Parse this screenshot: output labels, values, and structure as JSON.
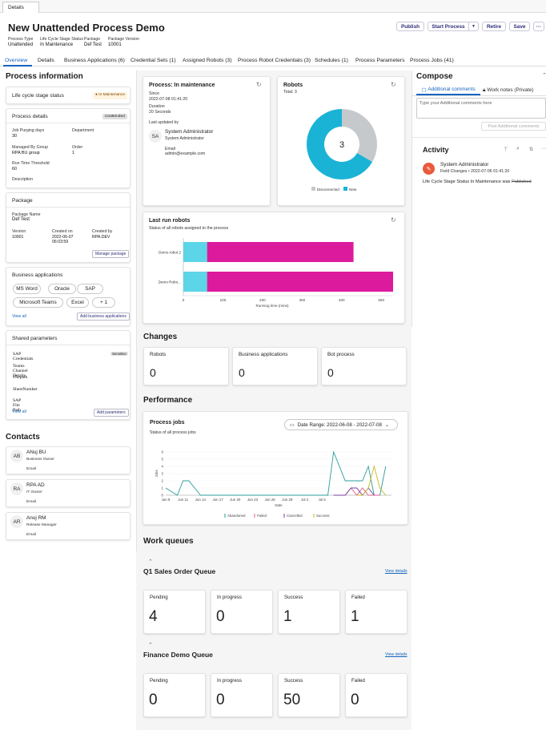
{
  "top_tab": "Details",
  "title": "New Unattended Process Demo",
  "meta": {
    "process_type_label": "Process Type",
    "process_type": "Unattended",
    "lifecycle_label": "Life Cycle Stage Status",
    "lifecycle": "In Maintenance",
    "package_label": "Package",
    "package": "Def Test",
    "version_label": "Package Version",
    "version": "10001"
  },
  "actions": {
    "publish": "Publish",
    "start_process": "Start Process",
    "retire": "Retire",
    "save": "Save",
    "more": "···"
  },
  "tabs": [
    "Overview",
    "Details",
    "Business Applications (6)",
    "Credential Sets (1)",
    "Assigned Robots (3)",
    "Process Robot Credentials (3)",
    "Schedules (1)",
    "Process Parameters",
    "Process Jobs (41)"
  ],
  "left": {
    "heading": "Process information",
    "lifecycle_card": {
      "title": "Life cycle stage status",
      "badge": "In Maintenance"
    },
    "details_card": {
      "title": "Process details",
      "badge": "Unattended",
      "job_purging_label": "Job Purging days",
      "job_purging": "30",
      "department_label": "Department",
      "managed_label": "Managed By Group",
      "managed": "RPA BU group",
      "order_label": "Order",
      "order": "1",
      "runtime_label": "Run Time Threshold",
      "runtime": "60",
      "description_label": "Description"
    },
    "package_card": {
      "title": "Package",
      "name_label": "Package Name",
      "name": "Def Test",
      "version_label": "Version",
      "version": "10001",
      "created_on_label": "Created on",
      "created_on": "2022-06-07 06:03:59",
      "created_by_label": "Created by",
      "created_by": "RPA.DEV",
      "manage_btn": "Manage package"
    },
    "apps_card": {
      "title": "Business applications",
      "apps": [
        "MS Word",
        "Oracle",
        "SAP",
        "Microsoft Teams",
        "Excel",
        "+ 1"
      ],
      "view_all": "View all",
      "add_btn": "Add business applications"
    },
    "params_card": {
      "title": "Shared parameters",
      "params": [
        "SAP Credentials",
        "Teams Channel Details",
        "Filepath",
        "SheetNumber",
        "SAP File Path"
      ],
      "sensitive": "Sensitive",
      "view_all": "View all",
      "add_btn": "Add parameters"
    },
    "contacts_heading": "Contacts",
    "contacts": [
      {
        "initials": "AB",
        "name": "ANuj BU",
        "role": "Business Owner",
        "email": "Email"
      },
      {
        "initials": "RA",
        "name": "RPA AD",
        "role": "IT Owner",
        "email": "Email"
      },
      {
        "initials": "AR",
        "name": "Anuj RM",
        "role": "Release Manager",
        "email": "Email"
      }
    ]
  },
  "process_card": {
    "title": "Process: In maintenance",
    "since_label": "Since",
    "since": "2022-07-08 01:41:20",
    "duration_label": "Duration",
    "duration": "20 Seconds",
    "updated_label": "Last updated by",
    "avatar": "SA",
    "user": "System Administrator",
    "user_role": "System Administrator",
    "email_label": "Email",
    "email": "admin@example.com"
  },
  "robots_card": {
    "title": "Robots",
    "total": "Total: 3",
    "center": "3",
    "legend": [
      "Disconnected",
      "New"
    ]
  },
  "lastrun": {
    "title": "Last run robots",
    "subtitle": "Status of all robots assigned to the process",
    "xlabel": "Running time (mins)"
  },
  "colors": {
    "cyan": "#1ab3d6",
    "gray": "#c6c9cc",
    "magenta": "#dc1a9e",
    "lightcyan": "#5dd5e8",
    "accent": "#1565c0"
  },
  "chart_data": [
    {
      "type": "pie",
      "title": "Robots",
      "categories": [
        "Disconnected",
        "New"
      ],
      "values": [
        1,
        2
      ]
    },
    {
      "type": "bar",
      "title": "Last run robots",
      "xlabel": "Running time (mins)",
      "categories": [
        "Demo robot 2",
        "Demo Robo..."
      ],
      "series": [
        {
          "values": [
            60,
            60
          ]
        },
        {
          "values": [
            370,
            470
          ]
        }
      ],
      "xticks": [
        "0",
        "100",
        "200",
        "300",
        "400",
        "500"
      ],
      "xlim": [
        0,
        530
      ]
    },
    {
      "type": "line",
      "title": "Process jobs",
      "ylabel": "Jobs",
      "xlabel": "Date",
      "x_ticks": [
        "Jun 8",
        "Jun 11",
        "Jun 14",
        "Jun 17",
        "Jun 20",
        "Jun 23",
        "Jun 26",
        "Jun 29",
        "Jul 2",
        "Jul 5"
      ],
      "y_ticks": [
        "0",
        "1",
        "2",
        "3",
        "4",
        "5",
        "6"
      ],
      "ylim": [
        0,
        6
      ],
      "series": [
        {
          "name": "Abandoned",
          "color": "#2a9c9c",
          "points": [
            [
              0,
              1
            ],
            [
              2,
              0
            ],
            [
              3,
              2
            ],
            [
              4,
              2
            ],
            [
              5,
              1
            ],
            [
              6,
              0
            ],
            [
              28,
              0
            ],
            [
              29,
              6
            ],
            [
              31,
              2
            ],
            [
              33,
              2
            ],
            [
              34,
              2
            ],
            [
              35,
              4
            ],
            [
              36,
              0
            ],
            [
              37,
              0
            ],
            [
              38,
              4
            ]
          ]
        },
        {
          "name": "Failed",
          "color": "#e05c8c",
          "points": [
            [
              29,
              0
            ],
            [
              31,
              0
            ],
            [
              32,
              1
            ],
            [
              33,
              0
            ],
            [
              34,
              1
            ],
            [
              35,
              0
            ],
            [
              37,
              0
            ]
          ]
        },
        {
          "name": "Cancelled",
          "color": "#7a3e9d",
          "points": [
            [
              29,
              0
            ],
            [
              31,
              0
            ],
            [
              32,
              1
            ],
            [
              33,
              1
            ],
            [
              34,
              0
            ],
            [
              35,
              1
            ],
            [
              36,
              0
            ]
          ]
        },
        {
          "name": "Success",
          "color": "#c8b820",
          "points": [
            [
              33,
              0
            ],
            [
              34,
              0
            ],
            [
              35,
              1
            ],
            [
              36,
              4
            ],
            [
              37,
              1
            ],
            [
              38,
              0
            ]
          ]
        }
      ]
    }
  ],
  "changes": {
    "heading": "Changes",
    "items": [
      {
        "label": "Robots",
        "value": "0"
      },
      {
        "label": "Business applications",
        "value": "0"
      },
      {
        "label": "Bot process",
        "value": "0"
      }
    ]
  },
  "performance": {
    "heading": "Performance",
    "title": "Process jobs",
    "subtitle": "Status of all process jobs",
    "date_range": "Date Range: 2022-06-08 - 2022-07-08"
  },
  "workqueues": {
    "heading": "Work queues",
    "view_details": "View details",
    "queues": [
      {
        "name": "Q1 Sales Order Queue",
        "stats": [
          {
            "label": "Pending",
            "value": "4"
          },
          {
            "label": "In progress",
            "value": "0"
          },
          {
            "label": "Success",
            "value": "1"
          },
          {
            "label": "Failed",
            "value": "1"
          }
        ]
      },
      {
        "name": "Finance Demo Queue",
        "stats": [
          {
            "label": "Pending",
            "value": "0"
          },
          {
            "label": "In progress",
            "value": "0"
          },
          {
            "label": "Success",
            "value": "50"
          },
          {
            "label": "Failed",
            "value": "0"
          }
        ]
      }
    ]
  },
  "compose": {
    "heading": "Compose",
    "tab_additional": "Additional comments",
    "tab_worknotes": "Work notes (Private)",
    "placeholder": "Type your Additional comments here",
    "post_btn": "Post Additional comments"
  },
  "activity": {
    "heading": "Activity",
    "user": "System Administrator",
    "meta": "Field Changes • 2022-07-06 01:41:20",
    "change_prefix": "Life Cycle Stage Status",
    "change_new": "In Maintenance",
    "change_was": "was",
    "change_old": "Published"
  }
}
